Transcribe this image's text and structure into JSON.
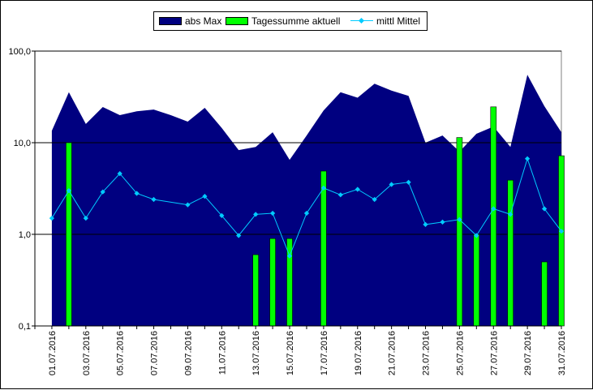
{
  "chart_data": {
    "type": "area",
    "x": [
      "01.07.2016",
      "02.07.2016",
      "03.07.2016",
      "04.07.2016",
      "05.07.2016",
      "06.07.2016",
      "07.07.2016",
      "08.07.2016",
      "09.07.2016",
      "10.07.2016",
      "11.07.2016",
      "12.07.2016",
      "13.07.2016",
      "14.07.2016",
      "15.07.2016",
      "16.07.2016",
      "17.07.2016",
      "18.07.2016",
      "19.07.2016",
      "20.07.2016",
      "21.07.2016",
      "22.07.2016",
      "23.07.2016",
      "24.07.2016",
      "25.07.2016",
      "26.07.2016",
      "27.07.2016",
      "28.07.2016",
      "29.07.2016",
      "30.07.2016",
      "31.07.2016"
    ],
    "tick_labels": [
      "01.07.2016",
      "03.07.2016",
      "05.07.2016",
      "07.07.2016",
      "09.07.2016",
      "11.07.2016",
      "13.07.2016",
      "15.07.2016",
      "17.07.2016",
      "19.07.2016",
      "21.07.2016",
      "23.07.2016",
      "25.07.2016",
      "27.07.2016",
      "29.07.2016",
      "31.07.2016"
    ],
    "y_scale": "log",
    "ylim": [
      0.1,
      100
    ],
    "y_ticks": [
      0.1,
      1,
      10,
      100
    ],
    "y_tick_labels": [
      "0,1",
      "1,0",
      "10,0",
      "100,0"
    ],
    "legend_position": "top",
    "gridlines": "horizontal",
    "series": [
      {
        "name": "abs Max",
        "kind": "area",
        "color": "#000080",
        "values": [
          13.5,
          35.5,
          16.0,
          24.5,
          20.0,
          22.0,
          23.0,
          20.0,
          17.0,
          24.0,
          14.5,
          8.3,
          9.0,
          13.0,
          6.5,
          12.0,
          22.5,
          35.5,
          31.0,
          44.0,
          37.0,
          32.5,
          10.0,
          12.0,
          8.0,
          12.5,
          15.0,
          9.0,
          55.0,
          25.0,
          13.0
        ]
      },
      {
        "name": "Tagessumme aktuell",
        "kind": "bar",
        "color": "#00ff00",
        "values": [
          null,
          10.0,
          null,
          null,
          null,
          null,
          null,
          null,
          null,
          null,
          null,
          null,
          0.6,
          0.9,
          0.9,
          null,
          4.9,
          null,
          null,
          null,
          null,
          null,
          null,
          null,
          11.4,
          1.0,
          24.6,
          3.9,
          null,
          0.5,
          7.2
        ]
      },
      {
        "name": "mittl Mittel",
        "kind": "line",
        "color": "#00ccff",
        "values": [
          1.5,
          3.0,
          1.5,
          2.9,
          4.6,
          2.8,
          2.4,
          null,
          2.1,
          2.6,
          1.6,
          0.97,
          1.65,
          1.7,
          0.58,
          1.7,
          3.2,
          2.7,
          3.1,
          2.4,
          3.5,
          3.7,
          1.28,
          1.36,
          1.45,
          0.97,
          1.9,
          1.65,
          6.7,
          1.9,
          1.08
        ]
      }
    ]
  }
}
